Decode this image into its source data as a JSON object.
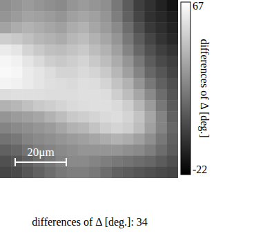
{
  "chart_data": {
    "type": "heatmap",
    "tick_labels": false,
    "cells": [
      [
        28,
        30,
        32,
        30,
        28,
        26,
        30,
        32,
        30,
        28,
        20,
        10,
        0,
        -5,
        -10,
        -15
      ],
      [
        30,
        32,
        35,
        34,
        32,
        30,
        34,
        36,
        34,
        30,
        22,
        12,
        2,
        -5,
        -8,
        -12
      ],
      [
        35,
        38,
        40,
        38,
        36,
        34,
        38,
        40,
        36,
        32,
        26,
        16,
        6,
        -2,
        -6,
        -10
      ],
      [
        50,
        48,
        45,
        42,
        40,
        38,
        42,
        44,
        40,
        36,
        30,
        20,
        10,
        2,
        -4,
        -8
      ],
      [
        60,
        58,
        52,
        48,
        45,
        44,
        46,
        48,
        44,
        40,
        34,
        24,
        14,
        6,
        0,
        -4
      ],
      [
        64,
        62,
        58,
        54,
        50,
        48,
        50,
        52,
        48,
        44,
        38,
        30,
        20,
        10,
        4,
        0
      ],
      [
        65,
        64,
        60,
        58,
        55,
        52,
        52,
        54,
        52,
        48,
        42,
        34,
        24,
        14,
        8,
        2
      ],
      [
        63,
        62,
        60,
        58,
        56,
        55,
        54,
        56,
        55,
        52,
        46,
        40,
        30,
        20,
        12,
        6
      ],
      [
        55,
        56,
        56,
        56,
        55,
        55,
        55,
        56,
        56,
        55,
        50,
        44,
        36,
        26,
        16,
        8
      ],
      [
        40,
        42,
        45,
        48,
        50,
        52,
        54,
        55,
        56,
        56,
        54,
        50,
        42,
        32,
        20,
        10
      ],
      [
        30,
        32,
        34,
        36,
        40,
        44,
        48,
        50,
        52,
        54,
        55,
        52,
        46,
        36,
        24,
        12
      ],
      [
        24,
        26,
        28,
        30,
        32,
        36,
        40,
        42,
        46,
        50,
        52,
        50,
        44,
        34,
        24,
        14
      ],
      [
        18,
        20,
        24,
        26,
        28,
        30,
        32,
        34,
        36,
        38,
        40,
        38,
        34,
        28,
        20,
        12
      ],
      [
        12,
        14,
        18,
        22,
        24,
        26,
        28,
        30,
        30,
        30,
        30,
        28,
        26,
        22,
        16,
        10
      ],
      [
        6,
        8,
        12,
        16,
        20,
        24,
        26,
        26,
        24,
        22,
        20,
        18,
        16,
        14,
        10,
        6
      ],
      [
        2,
        4,
        8,
        12,
        16,
        20,
        22,
        22,
        20,
        16,
        12,
        10,
        8,
        6,
        4,
        2
      ]
    ],
    "colorbar": {
      "range": [
        -22,
        67
      ],
      "ticks": [
        67,
        -22
      ],
      "label": "differences of Δ [deg.]"
    },
    "annotations": [
      "20μm"
    ],
    "caption": "differences of Δ [deg.]: 34"
  }
}
